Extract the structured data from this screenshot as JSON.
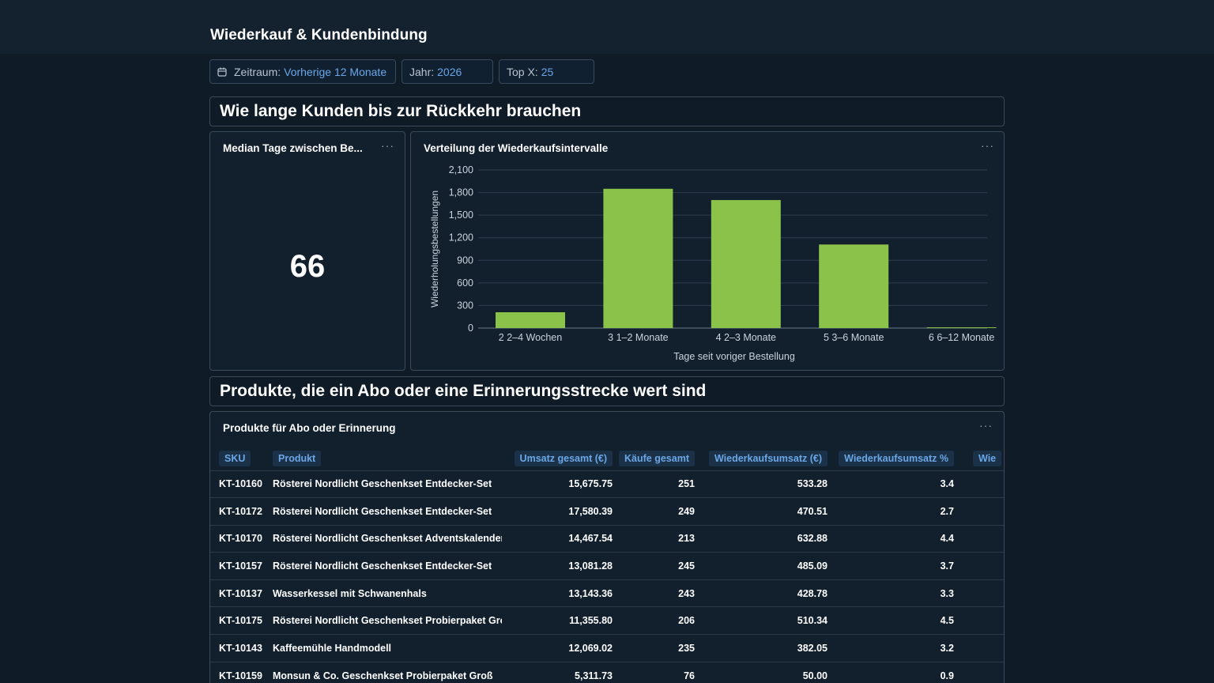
{
  "header": {
    "title": "Wiederkauf & Kundenbindung"
  },
  "filters": {
    "zeitraum": {
      "label": "Zeitraum:",
      "value": "Vorherige 12 Monate"
    },
    "jahr": {
      "label": "Jahr:",
      "value": "2026"
    },
    "topx": {
      "label": "Top X:",
      "value": "25"
    }
  },
  "section1": {
    "title": "Wie lange Kunden bis zur Rückkehr brauchen"
  },
  "kpi": {
    "title": "Median Tage zwischen Be...",
    "value": "66",
    "more": "···"
  },
  "chart_card": {
    "title": "Verteilung der Wiederkaufsintervalle",
    "more": "···"
  },
  "chart_data": {
    "type": "bar",
    "title": "Verteilung der Wiederkaufsintervalle",
    "xlabel": "Tage seit voriger Bestellung",
    "ylabel": "Wiederholungsbestellungen",
    "categories": [
      "2  2–4 Wochen",
      "3  1–2 Monate",
      "4  2–3 Monate",
      "5  3–6 Monate",
      "6  6–12 Monate"
    ],
    "values": [
      210,
      1850,
      1700,
      1110,
      10
    ],
    "ylim": [
      0,
      2100
    ],
    "yticks": [
      0,
      300,
      600,
      900,
      1200,
      1500,
      1800,
      2100
    ],
    "ytick_labels": [
      "0",
      "300",
      "600",
      "900",
      "1,200",
      "1,500",
      "1,800",
      "2,100"
    ],
    "grid": true,
    "color": "#8bc34a"
  },
  "section2": {
    "title": "Produkte, die ein Abo oder eine Erinnerungsstrecke wert sind"
  },
  "table_card": {
    "title": "Produkte für Abo oder Erinnerung",
    "more": "···",
    "columns": [
      "SKU",
      "Produkt",
      "Umsatz gesamt (€)",
      "Käufe gesamt",
      "Wiederkaufsumsatz (€)",
      "Wiederkaufsumsatz %",
      "Wie"
    ],
    "rows": [
      [
        "KT-10160",
        "Rösterei Nordlicht Geschenkset Entdecker-Set",
        "15,675.75",
        "251",
        "533.28",
        "3.4"
      ],
      [
        "KT-10172",
        "Rösterei Nordlicht Geschenkset Entdecker-Set",
        "17,580.39",
        "249",
        "470.51",
        "2.7"
      ],
      [
        "KT-10170",
        "Rösterei Nordlicht Geschenkset Adventskalender",
        "14,467.54",
        "213",
        "632.88",
        "4.4"
      ],
      [
        "KT-10157",
        "Rösterei Nordlicht Geschenkset Entdecker-Set",
        "13,081.28",
        "245",
        "485.09",
        "3.7"
      ],
      [
        "KT-10137",
        "Wasserkessel mit Schwanenhals",
        "13,143.36",
        "243",
        "428.78",
        "3.3"
      ],
      [
        "KT-10175",
        "Rösterei Nordlicht Geschenkset Probierpaket Groß",
        "11,355.80",
        "206",
        "510.34",
        "4.5"
      ],
      [
        "KT-10143",
        "Kaffeemühle Handmodell",
        "12,069.02",
        "235",
        "382.05",
        "3.2"
      ],
      [
        "KT-10159",
        "Monsun & Co. Geschenkset Probierpaket Groß",
        "5,311.73",
        "76",
        "50.00",
        "0.9"
      ]
    ]
  },
  "icons": {
    "calendar": "calendar-icon",
    "more": "more-horizontal-icon"
  }
}
